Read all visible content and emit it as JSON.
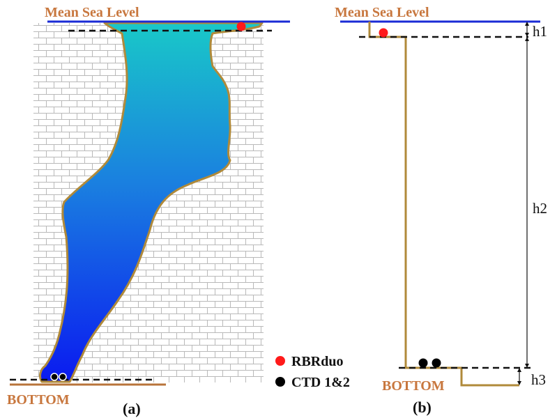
{
  "panel_a": {
    "sea_level_label": "Mean Sea Level",
    "bottom_label": "BOTTOM",
    "caption": "(a)"
  },
  "panel_b": {
    "sea_level_label": "Mean Sea Level",
    "bottom_label": "BOTTOM",
    "caption": "(b)",
    "dimensions": [
      "h1",
      "h2",
      "h3"
    ]
  },
  "legend": {
    "items": [
      {
        "label": "RBRduo",
        "color": "#ff1a1a"
      },
      {
        "label": "CTD 1&2",
        "color": "#000000"
      }
    ]
  },
  "colors": {
    "sea_level_line": "#1a2bd6",
    "cave_outline": "#b08a3a",
    "water_top": "#19c8c8",
    "water_bottom": "#0a1af0",
    "brick_line": "#b9b9b9",
    "label_orange": "#c8773e",
    "bottom_line": "#b8743a"
  }
}
